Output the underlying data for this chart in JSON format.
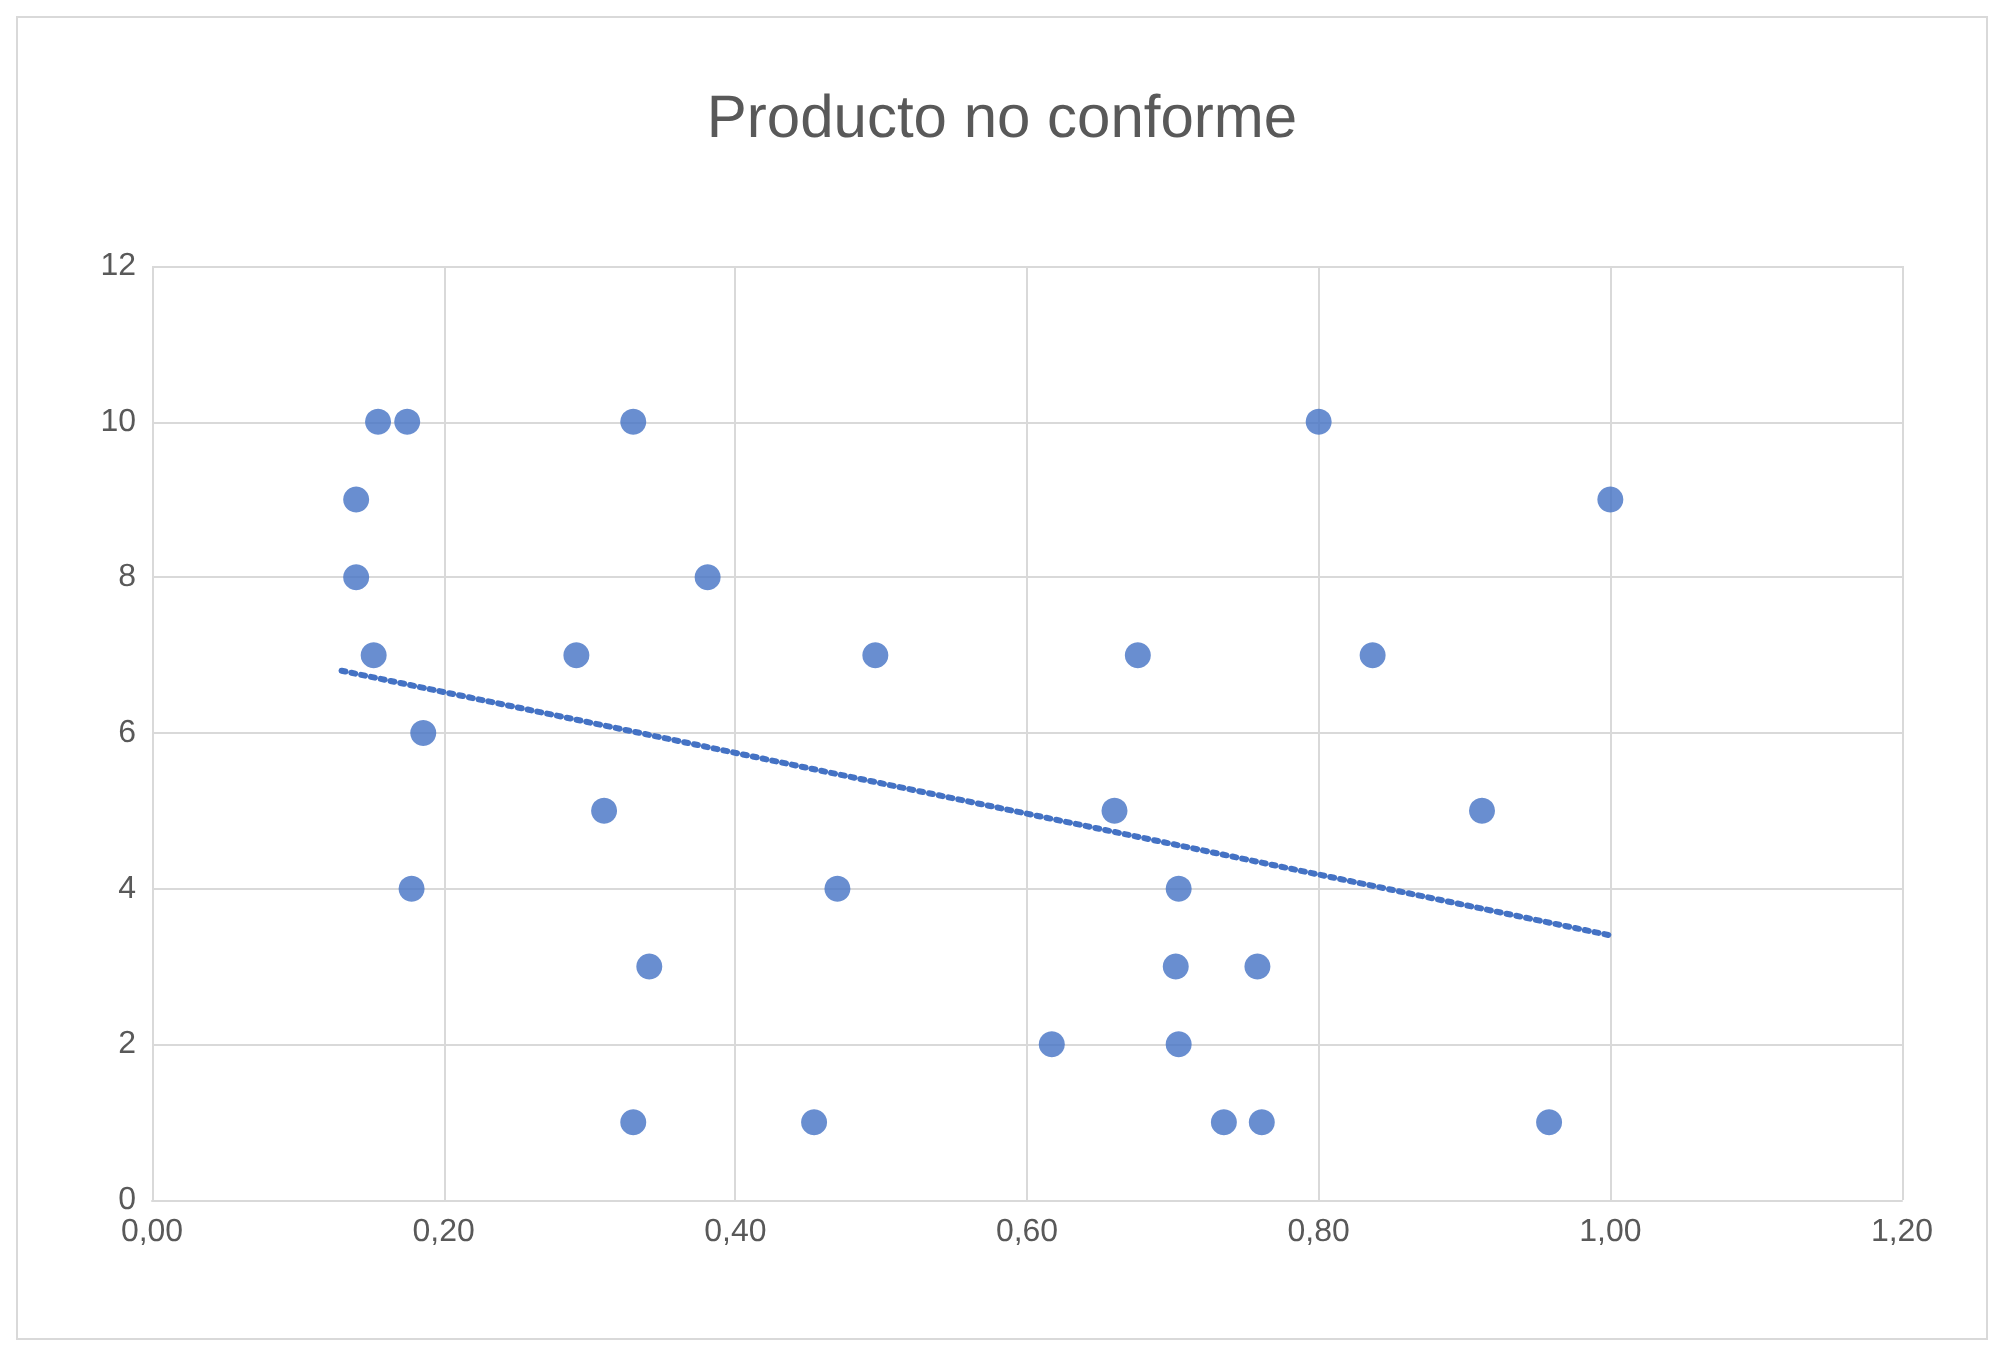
{
  "chart_data": {
    "type": "scatter",
    "title": "Producto no conforme",
    "xlim": [
      0,
      1.2
    ],
    "ylim": [
      0,
      12
    ],
    "xticks": [
      {
        "value": 0,
        "label": "0,00"
      },
      {
        "value": 0.2,
        "label": "0,20"
      },
      {
        "value": 0.4,
        "label": "0,40"
      },
      {
        "value": 0.6,
        "label": "0,60"
      },
      {
        "value": 0.8,
        "label": "0,80"
      },
      {
        "value": 1,
        "label": "1,00"
      },
      {
        "value": 1.2,
        "label": "1,20"
      }
    ],
    "yticks": [
      0,
      2,
      4,
      6,
      8,
      10,
      12
    ],
    "grid": true,
    "marker": "circle",
    "series": [
      {
        "color": "#4472c4",
        "x": [
          0.14,
          0.14,
          0.155,
          0.175,
          0.152,
          0.186,
          0.178,
          0.291,
          0.31,
          0.33,
          0.33,
          0.341,
          0.381,
          0.454,
          0.47,
          0.496,
          0.617,
          0.66,
          0.676,
          0.704,
          0.702,
          0.704,
          0.735,
          0.758,
          0.761,
          0.8,
          0.837,
          0.912,
          0.958,
          1.0
        ],
        "values": [
          9,
          8,
          10,
          10,
          7,
          6,
          4,
          7,
          5,
          10,
          1,
          3,
          8,
          1,
          4,
          7,
          2,
          5,
          7,
          4,
          3,
          2,
          1,
          3,
          1,
          10,
          7,
          5,
          1,
          9
        ]
      },
      {
        "type": "line",
        "color": "#4472c4",
        "x": [
          0.13,
          1.0
        ],
        "values": [
          6.8,
          3.4
        ],
        "line_style": "dotted",
        "marker": "none"
      }
    ]
  }
}
